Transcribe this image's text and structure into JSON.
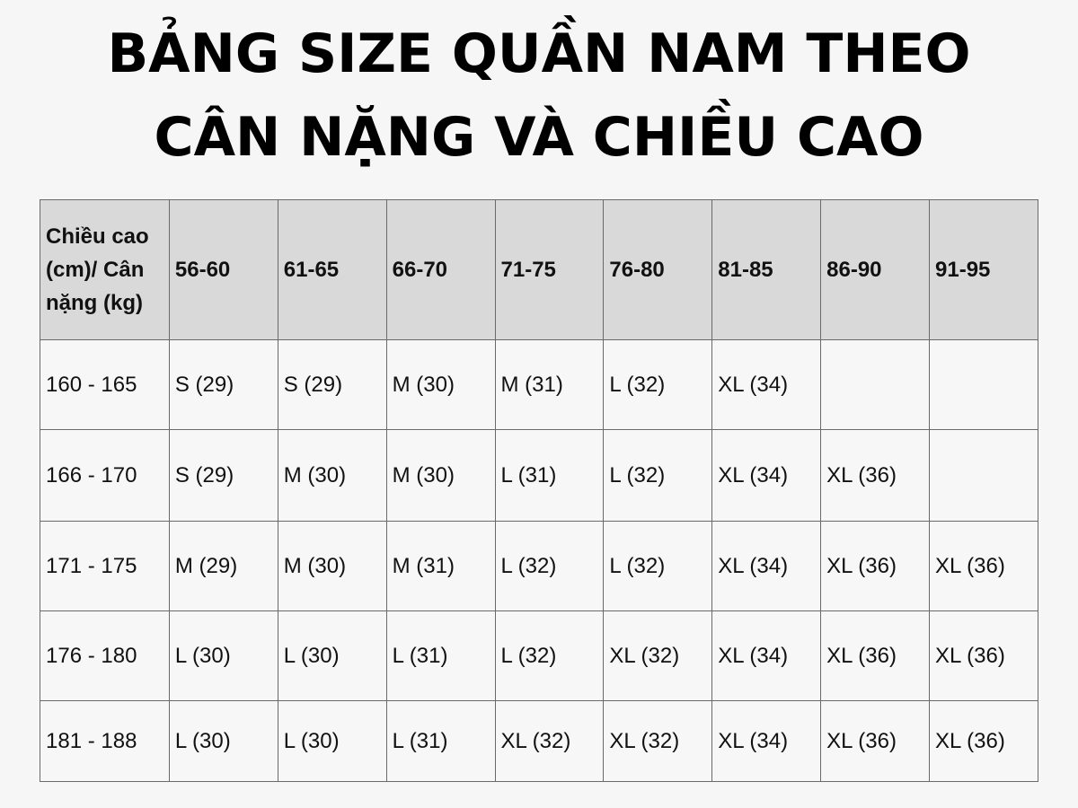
{
  "title": {
    "line1": "BẢNG SIZE QUẦN NAM THEO",
    "line2": "CÂN NẶNG VÀ CHIỀU CAO"
  },
  "table": {
    "corner_header": "Chiều cao (cm)/ Cân nặng (kg)",
    "weight_columns": [
      "56-60",
      "61-65",
      "66-70",
      "71-75",
      "76-80",
      "81-85",
      "86-90",
      "91-95"
    ],
    "rows": [
      {
        "height": "160 - 165",
        "sizes": [
          "S (29)",
          "S (29)",
          "M (30)",
          "M (31)",
          "L (32)",
          "XL (34)",
          "",
          ""
        ]
      },
      {
        "height": "166 - 170",
        "sizes": [
          "S (29)",
          "M (30)",
          "M (30)",
          "L (31)",
          "L (32)",
          "XL (34)",
          "XL (36)",
          ""
        ]
      },
      {
        "height": "171 - 175",
        "sizes": [
          "M (29)",
          "M (30)",
          "M (31)",
          "L (32)",
          "L (32)",
          "XL (34)",
          "XL (36)",
          "XL (36)"
        ]
      },
      {
        "height": "176 - 180",
        "sizes": [
          "L (30)",
          "L (30)",
          "L (31)",
          "L (32)",
          "XL (32)",
          "XL (34)",
          "XL (36)",
          "XL (36)"
        ]
      },
      {
        "height": "181 - 188",
        "sizes": [
          "L (30)",
          "L (30)",
          "L (31)",
          "XL (32)",
          "XL (32)",
          "XL (34)",
          "XL (36)",
          "XL (36)"
        ]
      }
    ]
  },
  "colors": {
    "header_bg": "#d9d9d9",
    "cell_bg": "#f7f7f7",
    "border": "#6a6a6a"
  }
}
